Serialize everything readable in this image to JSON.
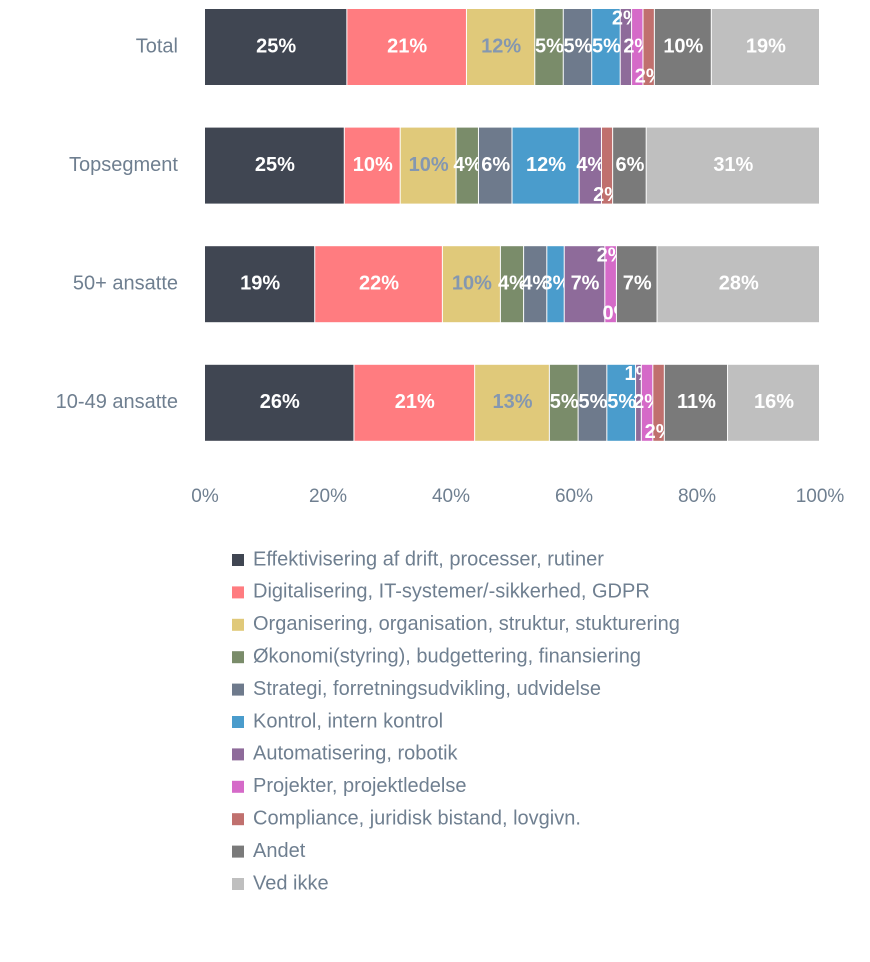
{
  "chart_data": {
    "type": "bar",
    "orientation": "horizontal",
    "stacking": "percent",
    "categories": [
      "Total",
      "Topsegment",
      "50+ ansatte",
      "10-49 ansatte"
    ],
    "xlim": [
      0,
      100
    ],
    "xticks": [
      {
        "value": 0,
        "label": "0%"
      },
      {
        "value": 20,
        "label": "20%"
      },
      {
        "value": 40,
        "label": "40%"
      },
      {
        "value": 60,
        "label": "60%"
      },
      {
        "value": 80,
        "label": "80%"
      },
      {
        "value": 100,
        "label": "100%"
      }
    ],
    "legend": "bottom",
    "series": [
      {
        "name": "Effektivisering af drift, processer, rutiner",
        "color": "#404652",
        "label_color": "#ffffff",
        "values": [
          25,
          25,
          19,
          26
        ],
        "value_labels": [
          "25%",
          "25%",
          "19%",
          "26%"
        ]
      },
      {
        "name": "Digitalisering, IT-systemer/-sikkerhed, GDPR",
        "color": "#ff7c80",
        "label_color": "#ffffff",
        "values": [
          21,
          10,
          22,
          21
        ],
        "value_labels": [
          "21%",
          "10%",
          "22%",
          "21%"
        ]
      },
      {
        "name": "Organisering, organisation, struktur, stukturering",
        "color": "#e0c97a",
        "label_color": "#8497b0",
        "values": [
          12,
          10,
          10,
          13
        ],
        "value_labels": [
          "12%",
          "10%",
          "10%",
          "13%"
        ]
      },
      {
        "name": "Økonomi(styring), budgettering, finansiering",
        "color": "#7a8c6a",
        "label_color": "#ffffff",
        "values": [
          5,
          4,
          4,
          5
        ],
        "value_labels": [
          "5%",
          "4%",
          "4%",
          "5%"
        ]
      },
      {
        "name": "Strategi, forretningsudvikling, udvidelse",
        "color": "#6e7a8c",
        "label_color": "#ffffff",
        "values": [
          5,
          6,
          4,
          5
        ],
        "value_labels": [
          "5%",
          "6%",
          "4%",
          "5%"
        ]
      },
      {
        "name": "Kontrol, intern kontrol",
        "color": "#4a9ccc",
        "label_color": "#ffffff",
        "values": [
          5,
          12,
          3,
          5
        ],
        "value_labels": [
          "5%",
          "12%",
          "3%",
          "5%"
        ]
      },
      {
        "name": "Automatisering, robotik",
        "color": "#8e6b9a",
        "label_color": "#ffffff",
        "values": [
          2,
          4,
          7,
          1
        ],
        "value_labels": [
          "2%",
          "4%",
          "7%",
          "1%"
        ]
      },
      {
        "name": "Projekter, projektledelse",
        "color": "#d56ac8",
        "label_color": "#ffffff",
        "values": [
          2,
          0,
          2,
          2
        ],
        "value_labels": [
          "2%",
          null,
          "2%",
          "2%"
        ]
      },
      {
        "name": "Compliance, juridisk bistand, lovgivn.",
        "color": "#c0706e",
        "label_color": "#ffffff",
        "values": [
          2,
          2,
          0,
          2
        ],
        "value_labels": [
          "2%",
          "2%",
          "0%",
          "2%"
        ]
      },
      {
        "name": "Andet",
        "color": "#7a7a7a",
        "label_color": "#ffffff",
        "values": [
          10,
          6,
          7,
          11
        ],
        "value_labels": [
          "10%",
          "6%",
          "7%",
          "11%"
        ]
      },
      {
        "name": "Ved ikke",
        "color": "#bfbfbf",
        "label_color": "#ffffff",
        "values": [
          19,
          31,
          28,
          16
        ],
        "value_labels": [
          "19%",
          "31%",
          "28%",
          "16%"
        ]
      }
    ]
  }
}
